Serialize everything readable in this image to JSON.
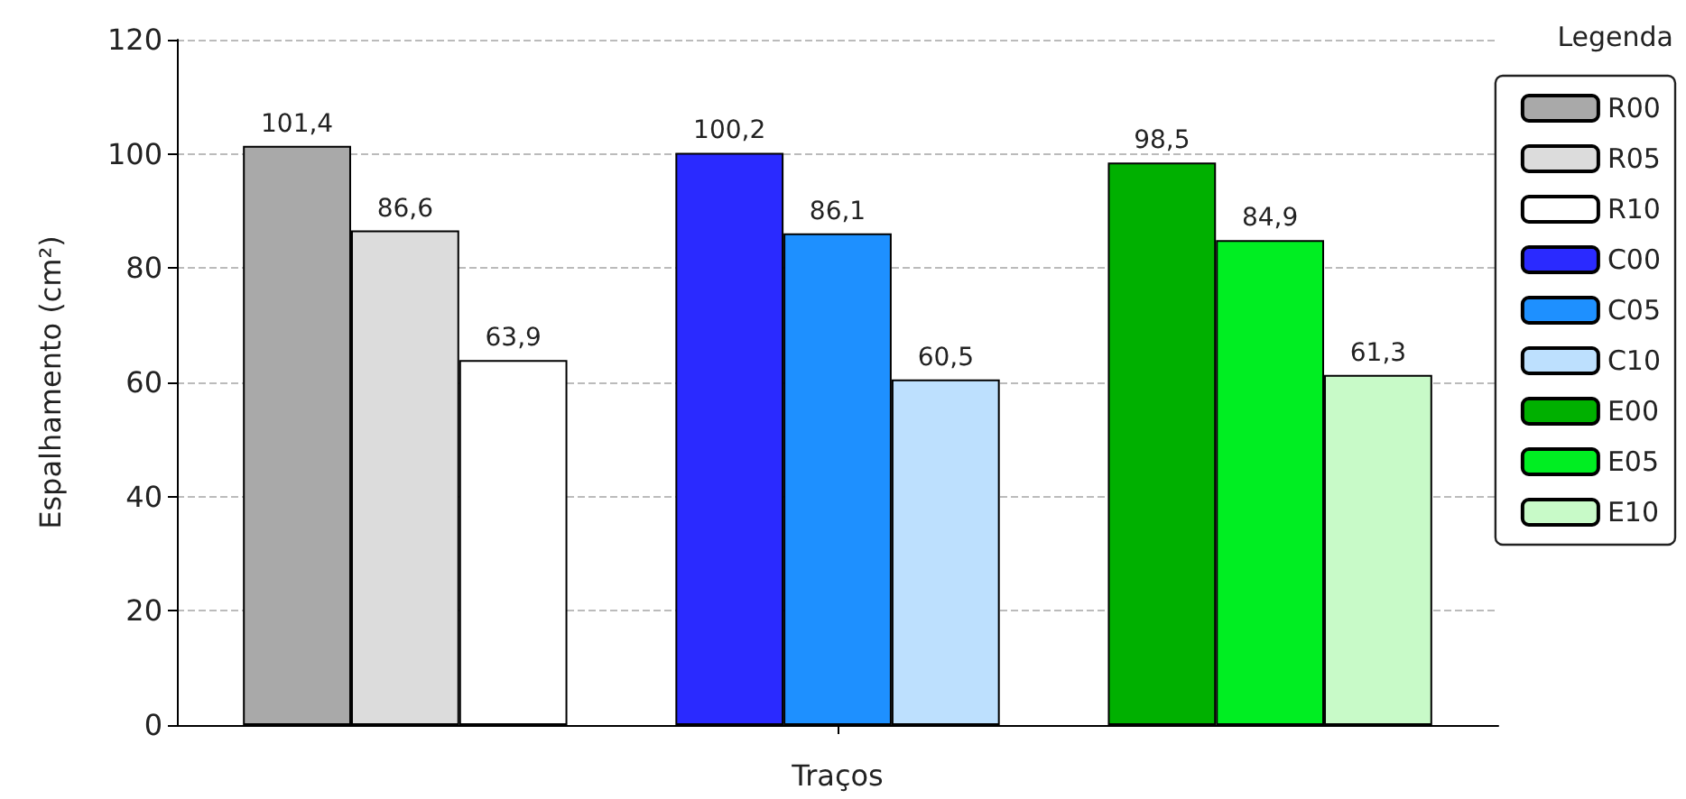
{
  "chart_data": {
    "type": "bar",
    "xlabel": "Traços",
    "ylabel": "Espalhamento (cm²)",
    "legend_title": "Legenda",
    "categories": [
      null
    ],
    "series": [
      {
        "name": "R00",
        "color": "#a9a9a9",
        "values": [
          101.4
        ],
        "value_labels": [
          "101,4"
        ]
      },
      {
        "name": "R05",
        "color": "#dcdcdc",
        "values": [
          86.6
        ],
        "value_labels": [
          "86,6"
        ]
      },
      {
        "name": "R10",
        "color": "#ffffff",
        "values": [
          63.9
        ],
        "value_labels": [
          "63,9"
        ]
      },
      {
        "name": "C00",
        "color": "#2a2aff",
        "values": [
          100.2
        ],
        "value_labels": [
          "100,2"
        ]
      },
      {
        "name": "C05",
        "color": "#1e90ff",
        "values": [
          86.1
        ],
        "value_labels": [
          "86,1"
        ]
      },
      {
        "name": "C10",
        "color": "#bde0fe",
        "values": [
          60.5
        ],
        "value_labels": [
          "60,5"
        ]
      },
      {
        "name": "E00",
        "color": "#00b000",
        "values": [
          98.5
        ],
        "value_labels": [
          "98,5"
        ]
      },
      {
        "name": "E05",
        "color": "#00ee22",
        "values": [
          84.9
        ],
        "value_labels": [
          "84,9"
        ]
      },
      {
        "name": "E10",
        "color": "#c8fac8",
        "values": [
          61.3
        ],
        "value_labels": [
          "61,3"
        ]
      }
    ],
    "ylim": [
      0,
      120
    ],
    "yticks": [
      0,
      20,
      40,
      60,
      80,
      100,
      120
    ],
    "grid": "y",
    "legend": "top right"
  }
}
